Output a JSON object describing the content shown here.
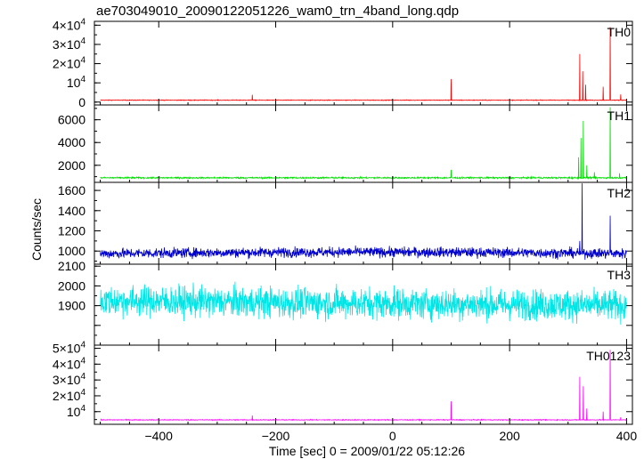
{
  "chart_data": {
    "type": "line",
    "title": "ae703049010_20090122051226_wam0_trn_4band_long.qdp",
    "xlabel": "Time [sec] 0 = 2009/01/22 05:12:26",
    "ylabel": "Counts/sec",
    "xlim": [
      -510,
      410
    ],
    "x_ticks": [
      -400,
      -200,
      0,
      200,
      400
    ],
    "x_tick_labels": [
      "−400",
      "−200",
      "0",
      "200",
      "400"
    ],
    "panels": [
      {
        "name": "TH0",
        "color": "#ff0000",
        "ylim": [
          -1500,
          42000
        ],
        "y_ticks": [
          0,
          10000,
          20000,
          30000,
          40000
        ],
        "y_tick_labels": [
          {
            "base": "0",
            "exp": ""
          },
          {
            "base": "10",
            "exp": "4"
          },
          {
            "base": "2×10",
            "exp": "4"
          },
          {
            "base": "3×10",
            "exp": "4"
          },
          {
            "base": "4×10",
            "exp": "4"
          }
        ],
        "baseline": 1000,
        "noise": 120,
        "spikes": [
          [
            -240,
            3800
          ],
          [
            100,
            12000
          ],
          [
            320,
            25000
          ],
          [
            325,
            16000
          ],
          [
            330,
            9000
          ],
          [
            360,
            8000
          ],
          [
            372,
            39000
          ],
          [
            390,
            4000
          ]
        ]
      },
      {
        "name": "TH1",
        "color": "#00dd00",
        "ylim": [
          500,
          7300
        ],
        "y_ticks": [
          2000,
          4000,
          6000
        ],
        "y_tick_labels": [
          {
            "base": "2000",
            "exp": ""
          },
          {
            "base": "4000",
            "exp": ""
          },
          {
            "base": "6000",
            "exp": ""
          }
        ],
        "baseline": 900,
        "noise": 45,
        "spikes": [
          [
            100,
            1600
          ],
          [
            318,
            2700
          ],
          [
            322,
            4400
          ],
          [
            326,
            5900
          ],
          [
            332,
            2000
          ],
          [
            345,
            1400
          ],
          [
            372,
            7100
          ],
          [
            388,
            1300
          ]
        ]
      },
      {
        "name": "TH2",
        "color": "#0000cc",
        "ylim": [
          870,
          1680
        ],
        "y_ticks": [
          1000,
          1200,
          1400,
          1600
        ],
        "y_tick_labels": [
          {
            "base": "1000",
            "exp": ""
          },
          {
            "base": "1200",
            "exp": ""
          },
          {
            "base": "1400",
            "exp": ""
          },
          {
            "base": "1600",
            "exp": ""
          }
        ],
        "baseline": 975,
        "noise": 35,
        "spikes": [
          [
            320,
            1100
          ],
          [
            324,
            1670
          ],
          [
            372,
            1350
          ]
        ]
      },
      {
        "name": "TH3",
        "color": "#00e5e5",
        "ylim": [
          1700,
          2110
        ],
        "y_ticks": [
          1800,
          1900,
          2000,
          2100
        ],
        "y_tick_labels": [
          {
            "base": "",
            "exp": ""
          },
          {
            "base": "1900",
            "exp": ""
          },
          {
            "base": "2000",
            "exp": ""
          },
          {
            "base": "2100",
            "exp": ""
          }
        ],
        "baseline": 1925,
        "noise": 55,
        "spikes": []
      },
      {
        "name": "TH0123",
        "color": "#ff00ff",
        "ylim": [
          2000,
          52000
        ],
        "y_ticks": [
          10000,
          20000,
          30000,
          40000,
          50000
        ],
        "y_tick_labels": [
          {
            "base": "10",
            "exp": "4"
          },
          {
            "base": "2×10",
            "exp": "4"
          },
          {
            "base": "3×10",
            "exp": "4"
          },
          {
            "base": "4×10",
            "exp": "4"
          },
          {
            "base": "5×10",
            "exp": "4"
          }
        ],
        "baseline": 4800,
        "noise": 180,
        "spikes": [
          [
            -240,
            7500
          ],
          [
            100,
            16500
          ],
          [
            320,
            32000
          ],
          [
            326,
            26000
          ],
          [
            332,
            12000
          ],
          [
            360,
            10000
          ],
          [
            372,
            49000
          ],
          [
            390,
            6500
          ]
        ]
      }
    ],
    "grid": false,
    "legend": "none"
  }
}
